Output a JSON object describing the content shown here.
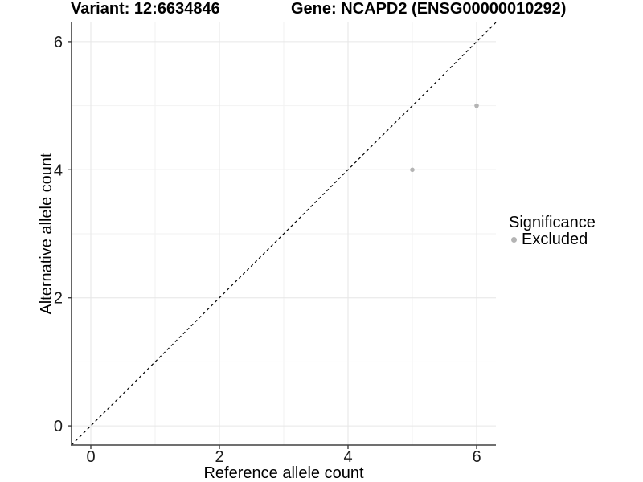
{
  "chart_data": {
    "type": "scatter",
    "title_left": "Variant: 12:6634846",
    "title_right": "Gene: NCAPD2 (ENSG00000010292)",
    "xlabel": "Reference allele count",
    "ylabel": "Alternative allele count",
    "xlim": [
      0,
      6
    ],
    "ylim": [
      0,
      6
    ],
    "expand": 0.3,
    "x_ticks": [
      0,
      2,
      4,
      6
    ],
    "y_ticks": [
      0,
      2,
      4,
      6
    ],
    "x_minor_gridlines": [
      1,
      3,
      5
    ],
    "y_minor_gridlines": [
      1,
      3,
      5
    ],
    "grid": "on",
    "identity_line": {
      "style": "dashed",
      "color": "#000000"
    },
    "series": [
      {
        "name": "Excluded",
        "color": "#b4b4b4",
        "points": [
          {
            "x": 5,
            "y": 4
          },
          {
            "x": 6,
            "y": 5
          }
        ]
      }
    ],
    "legend": {
      "title": "Significance",
      "position": "right",
      "items": [
        {
          "label": "Excluded",
          "color": "#b4b4b4"
        }
      ]
    },
    "colors": {
      "background": "#ffffff",
      "grid_major": "#e6e6e6",
      "grid_minor": "#f2f2f2",
      "axis": "#404040",
      "tick_text": "#1a1a1a",
      "point": "#b4b4b4"
    }
  }
}
